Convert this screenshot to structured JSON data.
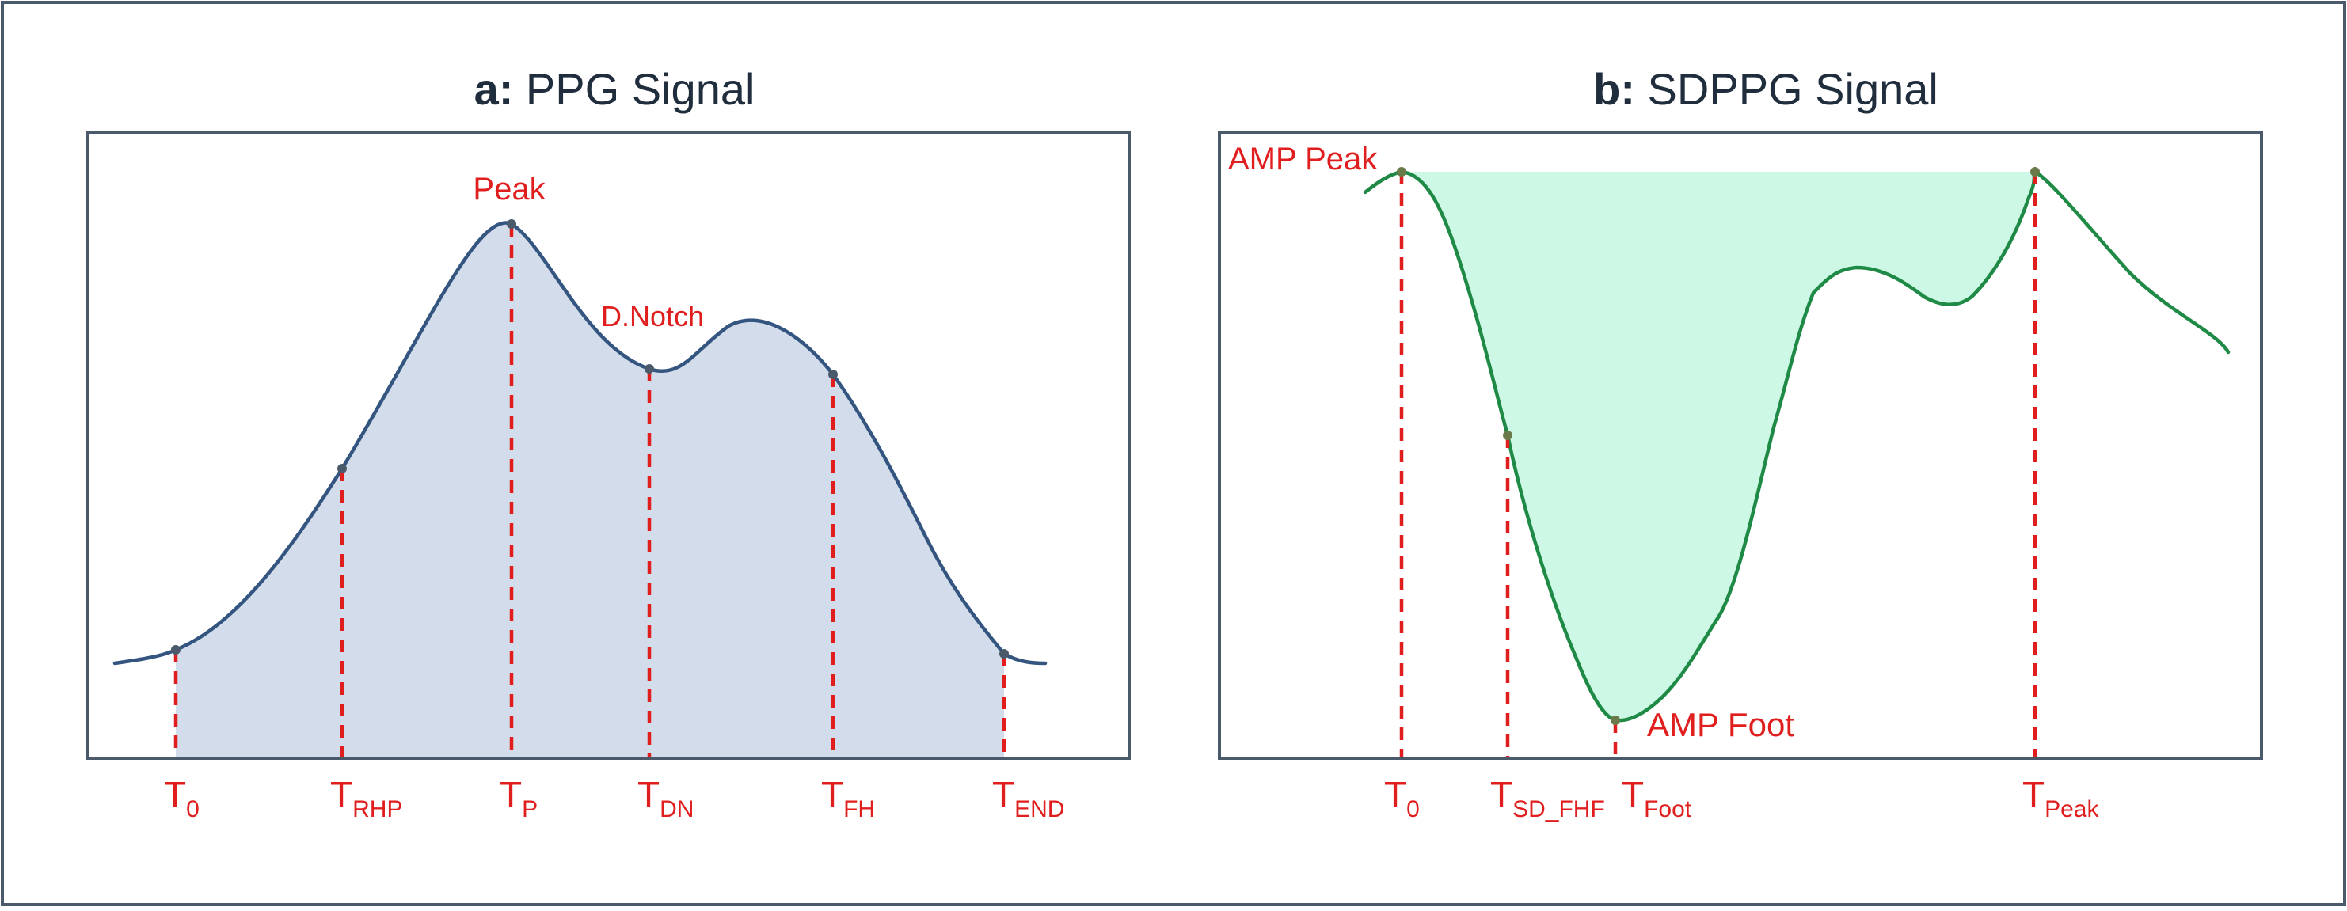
{
  "colors": {
    "frame": "#4a5a6a",
    "ppg_line": "#33557f",
    "ppg_fill": "#d2dcea",
    "sdppg_line": "#1f8a46",
    "sdppg_fill": "#cdf8e6",
    "marker_red": "#e01e1e"
  },
  "panel_a": {
    "title_letter": "a:",
    "title_text": " PPG Signal",
    "labels": {
      "peak": "Peak",
      "dnotch": "D.Notch"
    },
    "ticks": [
      {
        "main": "T",
        "sub": "0"
      },
      {
        "main": "T",
        "sub": "RHP"
      },
      {
        "main": "T",
        "sub": "P"
      },
      {
        "main": "T",
        "sub": "DN"
      },
      {
        "main": "T",
        "sub": "FH"
      },
      {
        "main": "T",
        "sub": "END"
      }
    ]
  },
  "panel_b": {
    "title_letter": "b:",
    "title_text": " SDPPG Signal",
    "labels": {
      "amp_peak": "AMP Peak",
      "amp_foot": "AMP Foot"
    },
    "ticks": [
      {
        "main": "T",
        "sub": "0"
      },
      {
        "main": "T",
        "sub": "SD_FHF"
      },
      {
        "main": "T",
        "sub": "Foot"
      },
      {
        "main": "T",
        "sub": "Peak"
      }
    ]
  }
}
